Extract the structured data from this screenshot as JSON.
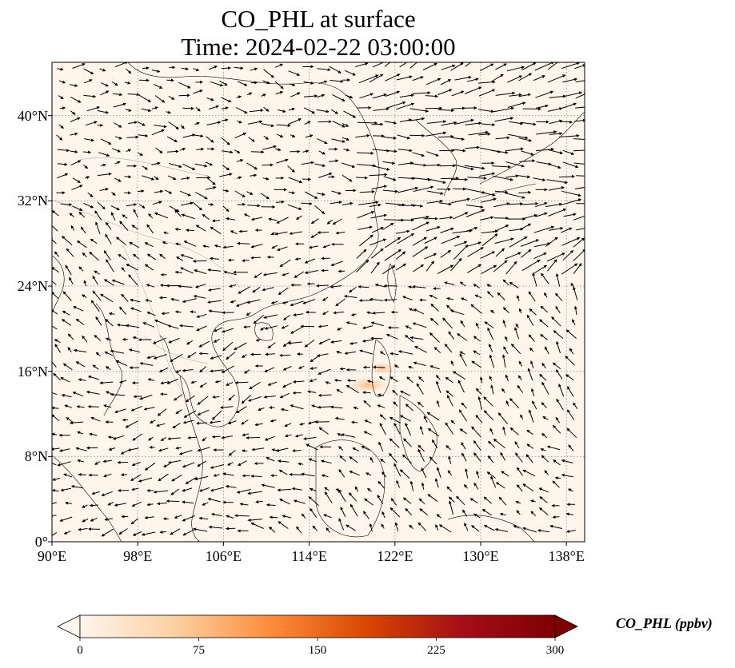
{
  "title": "CO_PHL at surface",
  "subtitle": "Time: 2024-02-22 03:00:00",
  "colorbar": {
    "label": "CO_PHL (ppbv)",
    "ticks": [
      "0",
      "75",
      "150",
      "225",
      "300"
    ],
    "colors": [
      "#fff5eb",
      "#fdd0a2",
      "#fd8d3c",
      "#d94801",
      "#a50f15",
      "#7f0000"
    ]
  },
  "map": {
    "x_ticks": [
      "90°E",
      "98°E",
      "106°E",
      "114°E",
      "122°E",
      "130°E",
      "138°E"
    ],
    "y_ticks": [
      "40°N",
      "32°N",
      "24°N",
      "16°N",
      "8°N",
      "0°"
    ],
    "lon_range": [
      90,
      139.7
    ],
    "lat_range": [
      0,
      45
    ],
    "background_color": "#fff5eb",
    "gridlines": "dotted"
  },
  "chart_data": {
    "type": "heatmap",
    "title": "CO_PHL at surface",
    "subtitle": "Time: 2024-02-22 03:00:00",
    "xlim": [
      90,
      139.7
    ],
    "ylim": [
      0,
      45
    ],
    "zlim": [
      0,
      300
    ],
    "colorbar_label": "CO_PHL (ppbv)",
    "hotspots": [
      {
        "lon": 119.5,
        "lat": 14.7,
        "value": 40
      },
      {
        "lon": 120.8,
        "lat": 16.3,
        "value": 20
      }
    ],
    "overlay": "wind vectors"
  }
}
